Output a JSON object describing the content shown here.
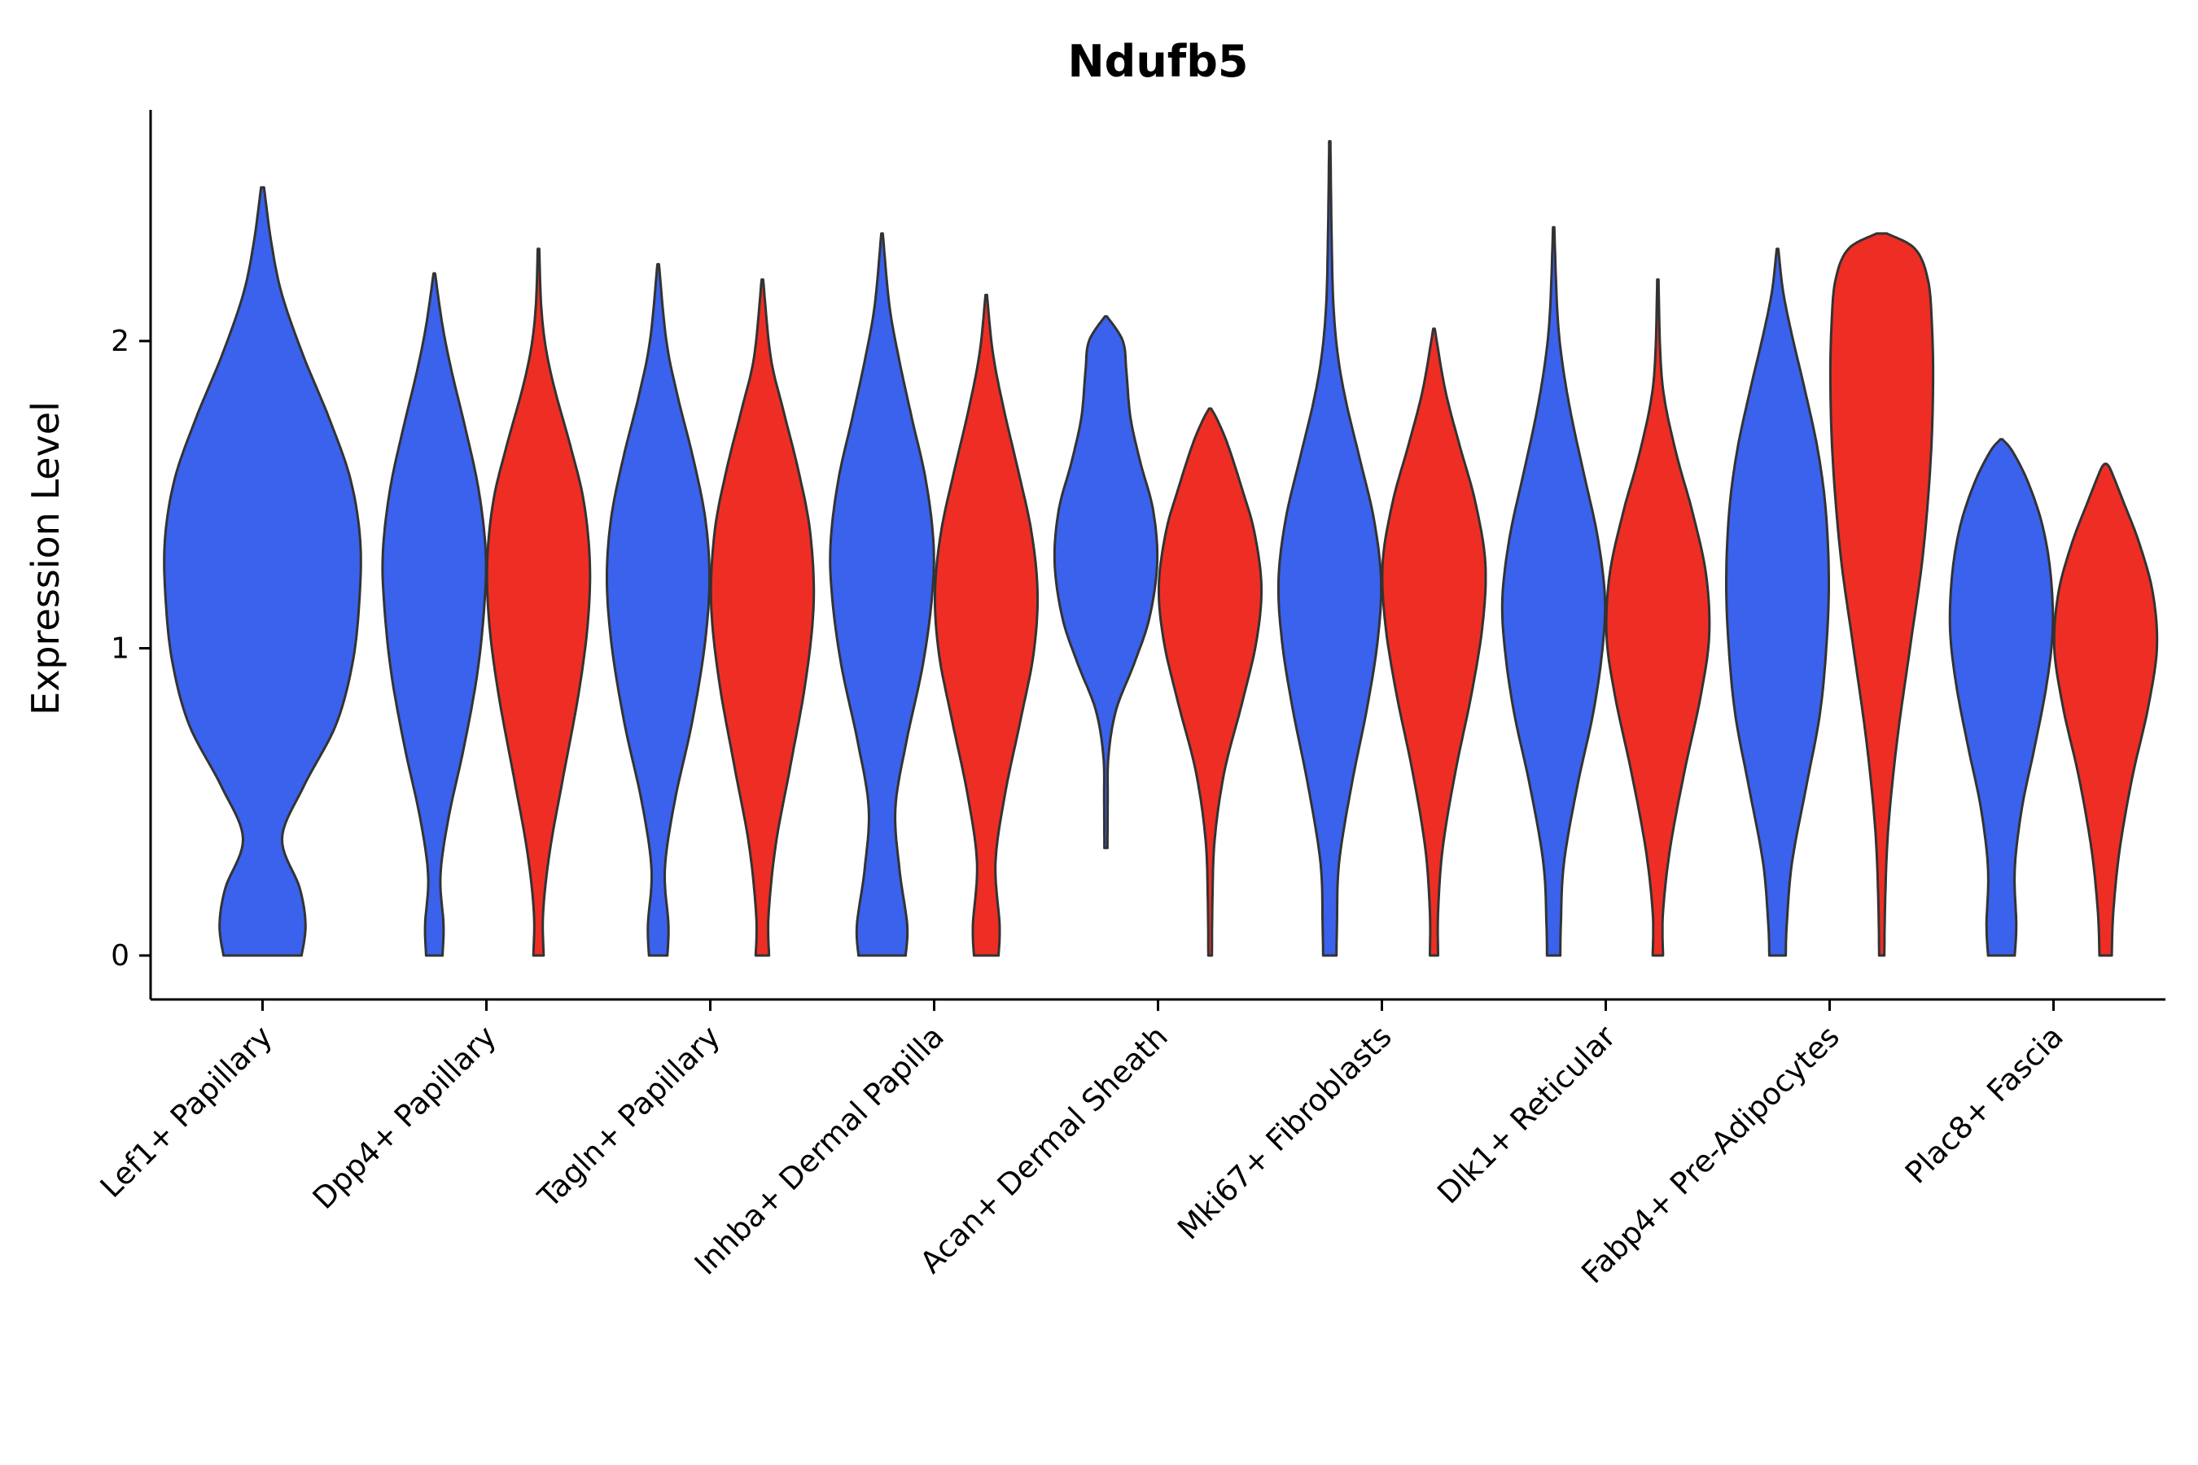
{
  "style": {
    "background": "#FFFFFF",
    "violin_stroke": "#333333",
    "axis_color": "#000000",
    "text_color": "#000000"
  },
  "chart_data": {
    "type": "violin",
    "title": "Ndufb5",
    "xlabel": "",
    "ylabel": "Expression Level",
    "yticks": [
      0,
      1,
      2
    ],
    "ylim": [
      -0.15,
      2.9
    ],
    "grid": false,
    "legend_position": "none",
    "x_tick_rotation": 45,
    "categories": [
      "Lef1+ Papillary",
      "Dpp4+ Papillary",
      "Tagln+ Papillary",
      "Inhba+ Dermal Papilla",
      "Acan+ Dermal Sheath",
      "Mki67+ Fibroblasts",
      "Dlk1+ Reticular",
      "Fabp4+ Pre-Adipocytes",
      "Plac8+ Fascia"
    ],
    "groups": [
      {
        "name": "group-1",
        "color": "#3B62EC"
      },
      {
        "name": "group-2",
        "color": "#EE2E24"
      }
    ],
    "violins": [
      {
        "category": 0,
        "group": 0,
        "single": true,
        "profile": [
          [
            0,
            0.4
          ],
          [
            0.1,
            0.44
          ],
          [
            0.22,
            0.38
          ],
          [
            0.38,
            0.2
          ],
          [
            0.55,
            0.42
          ],
          [
            0.75,
            0.75
          ],
          [
            0.95,
            0.92
          ],
          [
            1.15,
            0.99
          ],
          [
            1.35,
            1.0
          ],
          [
            1.55,
            0.9
          ],
          [
            1.75,
            0.68
          ],
          [
            1.95,
            0.42
          ],
          [
            2.15,
            0.2
          ],
          [
            2.32,
            0.09
          ],
          [
            2.5,
            0.015
          ]
        ]
      },
      {
        "category": 1,
        "group": 0,
        "single": false,
        "profile": [
          [
            0,
            0.16
          ],
          [
            0.1,
            0.18
          ],
          [
            0.26,
            0.12
          ],
          [
            0.45,
            0.28
          ],
          [
            0.68,
            0.58
          ],
          [
            0.92,
            0.84
          ],
          [
            1.15,
            0.98
          ],
          [
            1.32,
            1.0
          ],
          [
            1.52,
            0.86
          ],
          [
            1.72,
            0.6
          ],
          [
            1.9,
            0.34
          ],
          [
            2.05,
            0.16
          ],
          [
            2.22,
            0.015
          ]
        ]
      },
      {
        "category": 1,
        "group": 1,
        "single": false,
        "profile": [
          [
            0,
            0.1
          ],
          [
            0.14,
            0.09
          ],
          [
            0.34,
            0.22
          ],
          [
            0.58,
            0.48
          ],
          [
            0.85,
            0.78
          ],
          [
            1.08,
            0.96
          ],
          [
            1.28,
            1.0
          ],
          [
            1.48,
            0.88
          ],
          [
            1.66,
            0.62
          ],
          [
            1.84,
            0.32
          ],
          [
            1.98,
            0.14
          ],
          [
            2.12,
            0.05
          ],
          [
            2.3,
            0.015
          ]
        ]
      },
      {
        "category": 2,
        "group": 0,
        "single": false,
        "profile": [
          [
            0,
            0.18
          ],
          [
            0.1,
            0.2
          ],
          [
            0.28,
            0.13
          ],
          [
            0.5,
            0.32
          ],
          [
            0.75,
            0.65
          ],
          [
            1.0,
            0.9
          ],
          [
            1.22,
            1.0
          ],
          [
            1.42,
            0.92
          ],
          [
            1.62,
            0.68
          ],
          [
            1.82,
            0.38
          ],
          [
            2.0,
            0.16
          ],
          [
            2.25,
            0.015
          ]
        ]
      },
      {
        "category": 2,
        "group": 1,
        "single": false,
        "profile": [
          [
            0,
            0.13
          ],
          [
            0.13,
            0.12
          ],
          [
            0.36,
            0.26
          ],
          [
            0.62,
            0.55
          ],
          [
            0.9,
            0.85
          ],
          [
            1.15,
            1.0
          ],
          [
            1.38,
            0.93
          ],
          [
            1.58,
            0.7
          ],
          [
            1.78,
            0.4
          ],
          [
            1.95,
            0.16
          ],
          [
            2.2,
            0.015
          ]
        ]
      },
      {
        "category": 3,
        "group": 0,
        "single": false,
        "profile": [
          [
            0,
            0.46
          ],
          [
            0.1,
            0.49
          ],
          [
            0.28,
            0.34
          ],
          [
            0.48,
            0.26
          ],
          [
            0.7,
            0.48
          ],
          [
            0.95,
            0.8
          ],
          [
            1.18,
            0.98
          ],
          [
            1.35,
            1.0
          ],
          [
            1.55,
            0.85
          ],
          [
            1.75,
            0.58
          ],
          [
            1.95,
            0.32
          ],
          [
            2.12,
            0.14
          ],
          [
            2.35,
            0.015
          ]
        ]
      },
      {
        "category": 3,
        "group": 1,
        "single": false,
        "profile": [
          [
            0,
            0.24
          ],
          [
            0.1,
            0.26
          ],
          [
            0.3,
            0.18
          ],
          [
            0.52,
            0.36
          ],
          [
            0.76,
            0.66
          ],
          [
            0.98,
            0.92
          ],
          [
            1.18,
            1.0
          ],
          [
            1.38,
            0.88
          ],
          [
            1.58,
            0.62
          ],
          [
            1.78,
            0.34
          ],
          [
            1.96,
            0.13
          ],
          [
            2.15,
            0.015
          ]
        ]
      },
      {
        "category": 4,
        "group": 0,
        "single": false,
        "profile": [
          [
            0.35,
            0.03
          ],
          [
            0.5,
            0.035
          ],
          [
            0.65,
            0.05
          ],
          [
            0.8,
            0.2
          ],
          [
            0.95,
            0.55
          ],
          [
            1.1,
            0.85
          ],
          [
            1.28,
            1.0
          ],
          [
            1.45,
            0.92
          ],
          [
            1.6,
            0.68
          ],
          [
            1.75,
            0.48
          ],
          [
            1.9,
            0.4
          ],
          [
            2.0,
            0.33
          ],
          [
            2.08,
            0.02
          ]
        ]
      },
      {
        "category": 4,
        "group": 1,
        "single": false,
        "profile": [
          [
            0,
            0.035
          ],
          [
            0.18,
            0.045
          ],
          [
            0.38,
            0.09
          ],
          [
            0.6,
            0.28
          ],
          [
            0.82,
            0.62
          ],
          [
            1.02,
            0.9
          ],
          [
            1.2,
            1.0
          ],
          [
            1.38,
            0.86
          ],
          [
            1.52,
            0.62
          ],
          [
            1.66,
            0.35
          ],
          [
            1.74,
            0.15
          ],
          [
            1.78,
            0.02
          ]
        ]
      },
      {
        "category": 5,
        "group": 0,
        "single": false,
        "profile": [
          [
            0,
            0.13
          ],
          [
            0.1,
            0.14
          ],
          [
            0.3,
            0.18
          ],
          [
            0.55,
            0.42
          ],
          [
            0.8,
            0.72
          ],
          [
            1.02,
            0.93
          ],
          [
            1.22,
            1.0
          ],
          [
            1.42,
            0.86
          ],
          [
            1.62,
            0.58
          ],
          [
            1.8,
            0.32
          ],
          [
            1.95,
            0.16
          ],
          [
            2.12,
            0.07
          ],
          [
            2.35,
            0.035
          ],
          [
            2.65,
            0.012
          ]
        ]
      },
      {
        "category": 5,
        "group": 1,
        "single": false,
        "profile": [
          [
            0,
            0.08
          ],
          [
            0.14,
            0.08
          ],
          [
            0.35,
            0.17
          ],
          [
            0.6,
            0.42
          ],
          [
            0.85,
            0.73
          ],
          [
            1.08,
            0.95
          ],
          [
            1.28,
            1.0
          ],
          [
            1.48,
            0.8
          ],
          [
            1.66,
            0.5
          ],
          [
            1.84,
            0.22
          ],
          [
            2.04,
            0.015
          ]
        ]
      },
      {
        "category": 6,
        "group": 0,
        "single": false,
        "profile": [
          [
            0,
            0.13
          ],
          [
            0.1,
            0.14
          ],
          [
            0.3,
            0.2
          ],
          [
            0.55,
            0.46
          ],
          [
            0.78,
            0.76
          ],
          [
            0.98,
            0.94
          ],
          [
            1.16,
            1.0
          ],
          [
            1.36,
            0.86
          ],
          [
            1.56,
            0.6
          ],
          [
            1.76,
            0.34
          ],
          [
            1.94,
            0.16
          ],
          [
            2.1,
            0.07
          ],
          [
            2.37,
            0.012
          ]
        ]
      },
      {
        "category": 6,
        "group": 1,
        "single": false,
        "profile": [
          [
            0,
            0.1
          ],
          [
            0.14,
            0.1
          ],
          [
            0.35,
            0.24
          ],
          [
            0.6,
            0.52
          ],
          [
            0.84,
            0.83
          ],
          [
            1.04,
            1.0
          ],
          [
            1.24,
            0.94
          ],
          [
            1.44,
            0.68
          ],
          [
            1.62,
            0.38
          ],
          [
            1.8,
            0.14
          ],
          [
            1.95,
            0.05
          ],
          [
            2.2,
            0.012
          ]
        ]
      },
      {
        "category": 7,
        "group": 0,
        "single": false,
        "profile": [
          [
            0,
            0.16
          ],
          [
            0.1,
            0.18
          ],
          [
            0.3,
            0.28
          ],
          [
            0.55,
            0.56
          ],
          [
            0.78,
            0.82
          ],
          [
            1.0,
            0.95
          ],
          [
            1.22,
            1.0
          ],
          [
            1.45,
            0.94
          ],
          [
            1.65,
            0.78
          ],
          [
            1.85,
            0.52
          ],
          [
            2.02,
            0.28
          ],
          [
            2.16,
            0.11
          ],
          [
            2.3,
            0.015
          ]
        ]
      },
      {
        "category": 7,
        "group": 1,
        "single": false,
        "profile": [
          [
            0,
            0.05
          ],
          [
            0.2,
            0.07
          ],
          [
            0.42,
            0.13
          ],
          [
            0.7,
            0.3
          ],
          [
            1.0,
            0.55
          ],
          [
            1.3,
            0.8
          ],
          [
            1.6,
            0.95
          ],
          [
            1.85,
            1.0
          ],
          [
            2.05,
            0.98
          ],
          [
            2.2,
            0.9
          ],
          [
            2.3,
            0.65
          ],
          [
            2.35,
            0.1
          ]
        ]
      },
      {
        "category": 8,
        "group": 0,
        "single": false,
        "profile": [
          [
            0,
            0.26
          ],
          [
            0.1,
            0.29
          ],
          [
            0.28,
            0.26
          ],
          [
            0.48,
            0.4
          ],
          [
            0.68,
            0.65
          ],
          [
            0.88,
            0.88
          ],
          [
            1.06,
            1.0
          ],
          [
            1.24,
            0.96
          ],
          [
            1.4,
            0.8
          ],
          [
            1.54,
            0.52
          ],
          [
            1.64,
            0.22
          ],
          [
            1.68,
            0.02
          ]
        ]
      },
      {
        "category": 8,
        "group": 1,
        "single": false,
        "profile": [
          [
            0,
            0.12
          ],
          [
            0.14,
            0.15
          ],
          [
            0.34,
            0.27
          ],
          [
            0.58,
            0.52
          ],
          [
            0.8,
            0.82
          ],
          [
            1.0,
            1.0
          ],
          [
            1.18,
            0.92
          ],
          [
            1.34,
            0.66
          ],
          [
            1.48,
            0.34
          ],
          [
            1.58,
            0.1
          ],
          [
            1.6,
            0.02
          ]
        ]
      }
    ]
  }
}
